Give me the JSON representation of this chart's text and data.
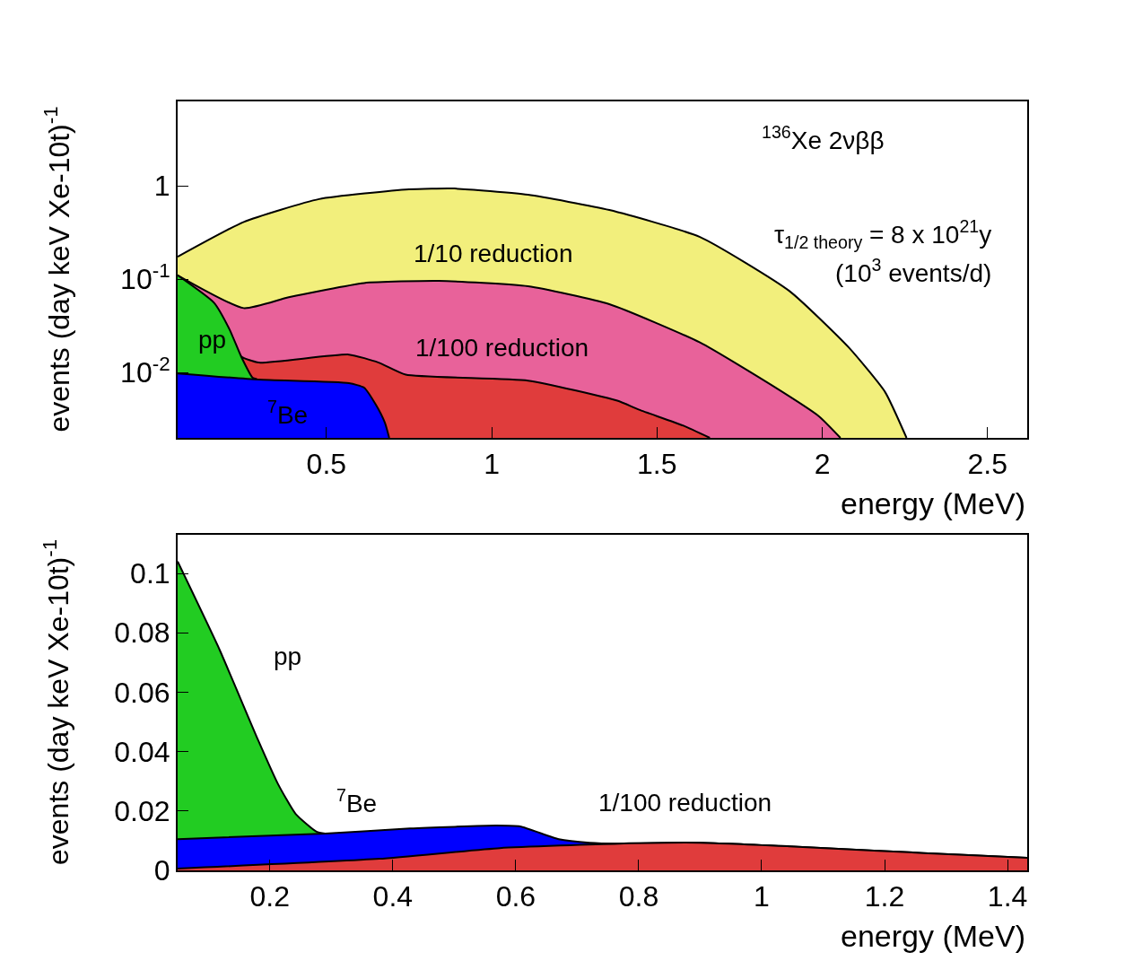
{
  "chart_data": [
    {
      "type": "area",
      "log": "y",
      "xlabel": "energy (MeV)",
      "ylabel": "events (day keV Xe-10t)$^{-1}$",
      "xlim": [
        0.05,
        2.62
      ],
      "xticks": [
        0.5,
        1,
        1.5,
        2,
        2.5
      ],
      "ylim": [
        0.002,
        8
      ],
      "yticks": [
        1,
        {
          "value": 0.1,
          "label": "10$^{-1}$"
        },
        {
          "value": 0.01,
          "label": "10$^{-2}$"
        }
      ],
      "series": [
        {
          "name": "1/10 reduction",
          "color": "#f2ef7c",
          "x": [
            0.05,
            0.25,
            0.478,
            0.75,
            0.886,
            1.11,
            1.356,
            1.63,
            1.9,
            2.08,
            2.19,
            2.255
          ],
          "values": [
            0.174,
            0.41,
            0.72,
            0.915,
            0.935,
            0.8,
            0.55,
            0.283,
            0.075,
            0.0186,
            0.0062,
            0.002
          ]
        },
        {
          "name": "1/100 reduction",
          "color": "#e8629a",
          "x": [
            0.05,
            0.25,
            0.386,
            0.614,
            0.84,
            1.11,
            1.356,
            1.63,
            1.853,
            1.99,
            2.055
          ],
          "values": [
            0.11,
            0.049,
            0.064,
            0.091,
            0.096,
            0.084,
            0.054,
            0.021,
            0.0071,
            0.0034,
            0.002
          ]
        },
        {
          "color": "#e03c3c",
          "x": [
            0.05,
            0.207,
            0.242,
            0.296,
            0.568,
            0.658,
            0.74,
            1.11,
            1.38,
            1.446,
            1.58,
            1.66
          ],
          "values": [
            0.11,
            0.026,
            0.0149,
            0.0128,
            0.0156,
            0.0128,
            0.0095,
            0.0082,
            0.005,
            0.004,
            0.0027,
            0.002
          ]
        },
        {
          "name": "pp",
          "color": "#22cc22",
          "x": [
            0.05,
            0.16,
            0.207,
            0.242,
            0.277,
            0.29
          ],
          "values": [
            0.11,
            0.056,
            0.029,
            0.0149,
            0.0088,
            0.0085
          ]
        },
        {
          "name": "$^{7}$Be",
          "color": "#0000ff",
          "x": [
            0.05,
            0.296,
            0.568,
            0.614,
            0.65,
            0.677,
            0.69
          ],
          "values": [
            0.0098,
            0.0084,
            0.0077,
            0.0069,
            0.0045,
            0.0029,
            0.002
          ]
        }
      ],
      "annotations": [
        "$^{136}$Xe 2νββ",
        "τ$_{1/2 theory}$ = 8 x 10$^{21}$y",
        "(10$^{3}$ events/d)"
      ]
    },
    {
      "type": "area",
      "xlabel": "energy (MeV)",
      "ylabel": "events (day keV Xe-10t)$^{-1}$",
      "xlim": [
        0.05,
        1.432
      ],
      "xticks": [
        0.2,
        0.4,
        0.6,
        0.8,
        1,
        1.2,
        1.4
      ],
      "ylim": [
        0,
        0.113
      ],
      "yticks": [
        0,
        0.02,
        0.04,
        0.06,
        0.08,
        0.1
      ],
      "series": [
        {
          "name": "pp",
          "color": "#22cc22",
          "x": [
            0.05,
            0.118,
            0.18,
            0.213,
            0.242,
            0.276,
            0.29
          ],
          "values": [
            0.104,
            0.0744,
            0.0443,
            0.0292,
            0.019,
            0.013,
            0.0124
          ]
        },
        {
          "name": "$^{7}$Be",
          "color": "#0000ff",
          "x": [
            0.05,
            0.29,
            0.428,
            0.568,
            0.607,
            0.67,
            0.72,
            0.768,
            0.9,
            1.045,
            1.19,
            1.337,
            1.432
          ],
          "values": [
            0.0105,
            0.0124,
            0.0141,
            0.0151,
            0.0148,
            0.0105,
            0.0093,
            0.009,
            0.0093,
            0.0081,
            0.0066,
            0.0051,
            0.0042
          ]
        },
        {
          "name": "1/100 reduction",
          "color": "#e03c3c",
          "x": [
            0.05,
            0.378,
            0.574,
            0.768,
            0.9,
            1.045,
            1.19,
            1.337,
            1.432
          ],
          "values": [
            0.0006,
            0.0039,
            0.0075,
            0.009,
            0.0093,
            0.0081,
            0.0066,
            0.0051,
            0.0042
          ]
        }
      ]
    }
  ]
}
